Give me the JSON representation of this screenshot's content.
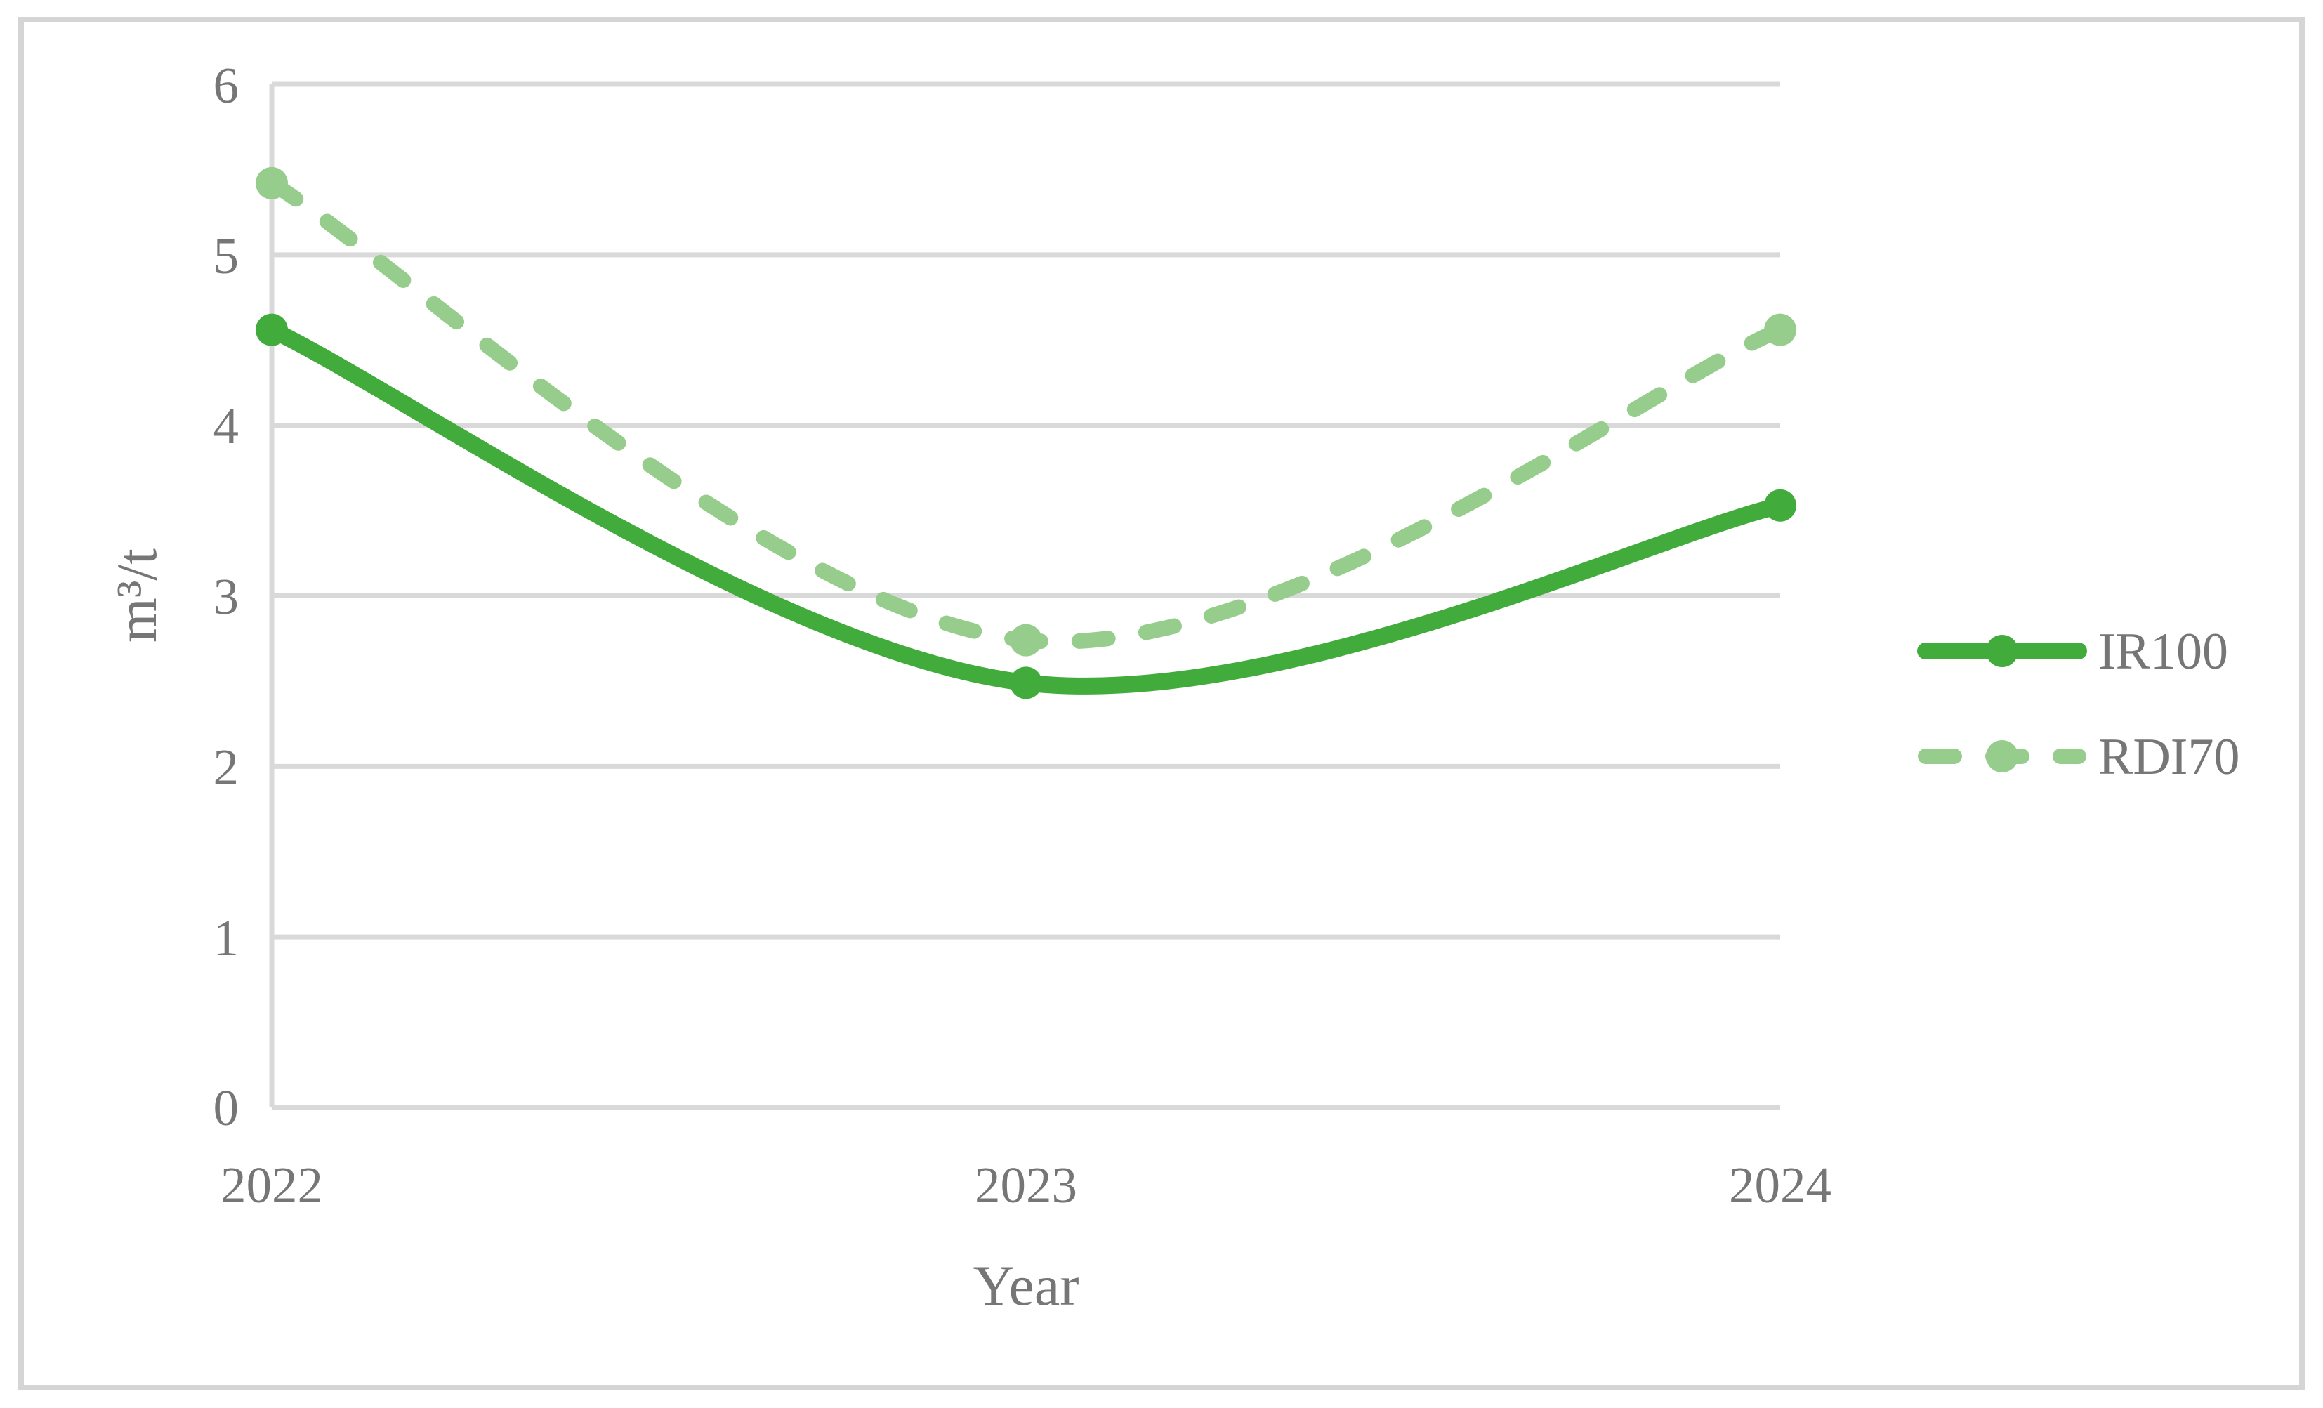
{
  "figure": {
    "background": "#FFFFFF",
    "border_color": "#D5D5D5",
    "gridline_color": "#D9D9D9",
    "text_color": "#767676"
  },
  "chart_data": {
    "type": "line",
    "title": "",
    "categories": [
      "2022",
      "2023",
      "2024"
    ],
    "series": [
      {
        "name": "IR100",
        "values": [
          4.56,
          2.49,
          3.53
        ],
        "color": "#41AB3B",
        "line_style": "solid",
        "line_width": 24,
        "marker": "circle",
        "marker_radius": 23
      },
      {
        "name": "RDI70",
        "values": [
          5.42,
          2.74,
          4.56
        ],
        "color": "#96CD8C",
        "line_style": "dashed",
        "line_width": 22,
        "marker": "circle",
        "marker_radius": 23
      }
    ],
    "xlabel": "Year",
    "ylabel": "m³/t",
    "ylim": [
      0,
      6
    ],
    "yticks": [
      "0",
      "1",
      "2",
      "3",
      "4",
      "5",
      "6"
    ],
    "grid": true,
    "smooth": true,
    "legend_position": "right-middle"
  }
}
